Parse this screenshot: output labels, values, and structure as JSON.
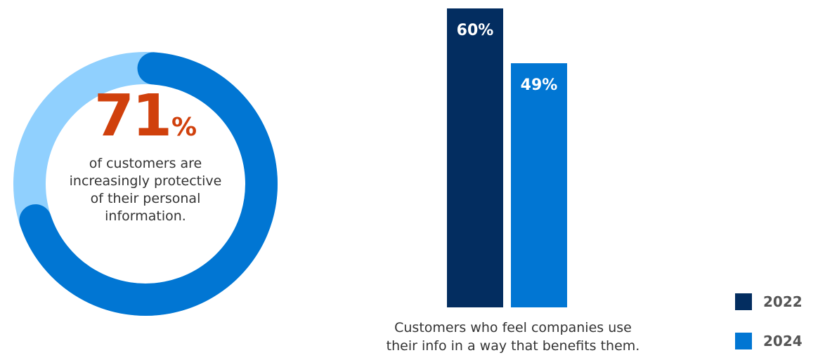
{
  "chart_data": [
    {
      "type": "pie",
      "values": [
        71,
        29
      ],
      "colors": [
        "#0176d3",
        "#90d0fe"
      ],
      "headline_number": "71",
      "headline_symbol": "%",
      "caption": "of customers are increasingly protective of their personal information."
    },
    {
      "type": "bar",
      "categories": [
        "2022",
        "2024"
      ],
      "values": [
        60,
        49
      ],
      "data_labels": [
        "60%",
        "49%"
      ],
      "colors": [
        "#032d60",
        "#0176d3"
      ],
      "ylim": [
        0,
        60
      ],
      "caption_line1": "Customers who feel companies use",
      "caption_line2": "their info in a way that benefits them.",
      "legend": [
        {
          "label": "2022",
          "color": "#032d60"
        },
        {
          "label": "2024",
          "color": "#0176d3"
        }
      ],
      "legend_placement": "bottom-right",
      "grid": false
    }
  ]
}
